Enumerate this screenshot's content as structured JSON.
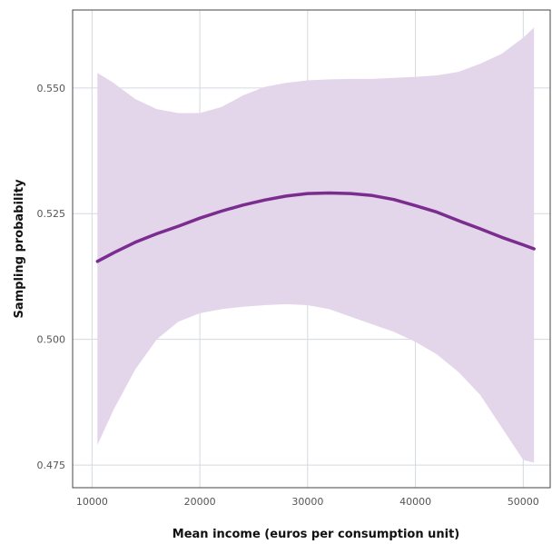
{
  "chart_data": {
    "type": "line",
    "title": "",
    "xlabel": "Mean income (euros per consumption unit)",
    "ylabel": "Sampling probability",
    "xlim": [
      8200,
      52500
    ],
    "ylim": [
      0.4705,
      0.5655
    ],
    "x_ticks": [
      10000,
      20000,
      30000,
      40000,
      50000
    ],
    "y_ticks": [
      0.475,
      0.5,
      0.525,
      0.55
    ],
    "x_tick_labels": [
      "10000",
      "20000",
      "30000",
      "40000",
      "50000"
    ],
    "y_tick_labels": [
      "0.475",
      "0.500",
      "0.525",
      "0.550"
    ],
    "grid": true,
    "legend": "none",
    "series": [
      {
        "x": [
          10500,
          12000,
          14000,
          16000,
          18000,
          20000,
          22000,
          24000,
          26000,
          28000,
          30000,
          32000,
          34000,
          36000,
          38000,
          40000,
          42000,
          44000,
          46000,
          48000,
          50000,
          51000
        ],
        "y": [
          0.5155,
          0.5172,
          0.5193,
          0.521,
          0.5225,
          0.5241,
          0.5255,
          0.5267,
          0.5277,
          0.5285,
          0.529,
          0.5291,
          0.529,
          0.5286,
          0.5278,
          0.5266,
          0.5253,
          0.5236,
          0.522,
          0.5203,
          0.5188,
          0.518
        ],
        "ci_upper": [
          0.553,
          0.551,
          0.5478,
          0.5458,
          0.545,
          0.545,
          0.5462,
          0.5485,
          0.5502,
          0.551,
          0.5515,
          0.5517,
          0.5518,
          0.5518,
          0.552,
          0.5522,
          0.5525,
          0.5532,
          0.5548,
          0.5568,
          0.56,
          0.562
        ],
        "ci_lower": [
          0.479,
          0.486,
          0.494,
          0.5,
          0.5035,
          0.5052,
          0.506,
          0.5065,
          0.5068,
          0.507,
          0.5068,
          0.506,
          0.5045,
          0.503,
          0.5015,
          0.4995,
          0.497,
          0.4935,
          0.489,
          0.4825,
          0.476,
          0.4755
        ],
        "color": "#7b2c8f",
        "band_color": "#e3d5ea"
      }
    ]
  }
}
